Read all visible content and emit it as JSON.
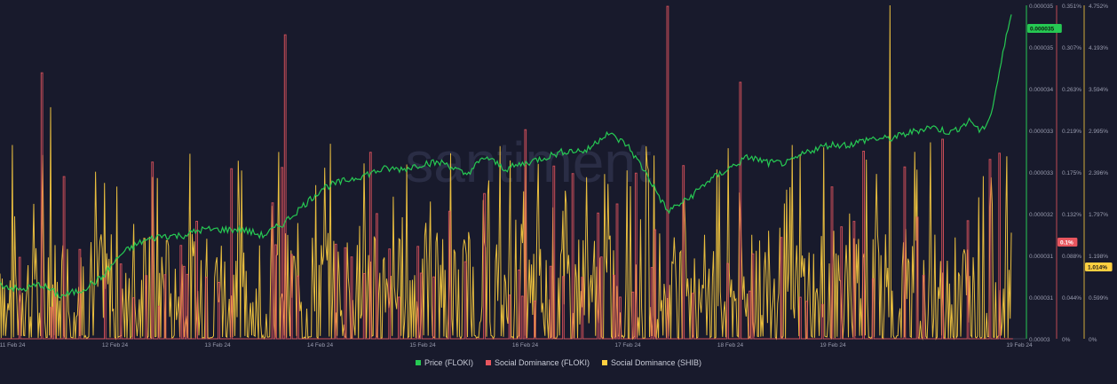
{
  "chart_data": {
    "type": "line",
    "watermark": "santiment",
    "x_ticks": [
      "11 Feb 24",
      "12 Feb 24",
      "13 Feb 24",
      "14 Feb 24",
      "15 Feb 24",
      "16 Feb 24",
      "17 Feb 24",
      "18 Feb 24",
      "19 Feb 24",
      "19 Feb 24"
    ],
    "axes": {
      "price": {
        "ticks": [
          "0.000035",
          "0.000035",
          "0.000034",
          "0.000033",
          "0.000033",
          "0.000032",
          "0.000031",
          "0.000031",
          "0.00003"
        ],
        "current_label": "0.000035",
        "color": "#26c953"
      },
      "floki_dominance": {
        "ticks": [
          "0.351%",
          "0.307%",
          "0.263%",
          "0.219%",
          "0.175%",
          "0.132%",
          "0.088%",
          "0.044%",
          "0%"
        ],
        "current_label": "0.1%",
        "color": "#e8565f"
      },
      "shib_dominance": {
        "ticks": [
          "4.752%",
          "4.193%",
          "3.594%",
          "2.995%",
          "2.396%",
          "1.797%",
          "1.198%",
          "0.599%",
          "0%"
        ],
        "current_label": "1.014%",
        "color": "#ffcf40"
      }
    },
    "series": [
      {
        "name": "Price (FLOKI)",
        "color": "#26c953",
        "y_axis": "price",
        "points": [
          [
            0,
            3.09e-05
          ],
          [
            0.02,
            3.08e-05
          ],
          [
            0.04,
            3.09e-05
          ],
          [
            0.06,
            3.07e-05
          ],
          [
            0.08,
            3.08e-05
          ],
          [
            0.1,
            3.1e-05
          ],
          [
            0.12,
            3.14e-05
          ],
          [
            0.14,
            3.16e-05
          ],
          [
            0.16,
            3.17e-05
          ],
          [
            0.18,
            3.17e-05
          ],
          [
            0.2,
            3.18e-05
          ],
          [
            0.22,
            3.18e-05
          ],
          [
            0.24,
            3.18e-05
          ],
          [
            0.26,
            3.17e-05
          ],
          [
            0.28,
            3.19e-05
          ],
          [
            0.3,
            3.22e-05
          ],
          [
            0.32,
            3.25e-05
          ],
          [
            0.34,
            3.26e-05
          ],
          [
            0.36,
            3.27e-05
          ],
          [
            0.38,
            3.28e-05
          ],
          [
            0.4,
            3.28e-05
          ],
          [
            0.42,
            3.29e-05
          ],
          [
            0.44,
            3.29e-05
          ],
          [
            0.46,
            3.27e-05
          ],
          [
            0.48,
            3.3e-05
          ],
          [
            0.5,
            3.28e-05
          ],
          [
            0.52,
            3.29e-05
          ],
          [
            0.54,
            3.3e-05
          ],
          [
            0.56,
            3.31e-05
          ],
          [
            0.58,
            3.31e-05
          ],
          [
            0.6,
            3.34e-05
          ],
          [
            0.62,
            3.32e-05
          ],
          [
            0.64,
            3.27e-05
          ],
          [
            0.66,
            3.21e-05
          ],
          [
            0.68,
            3.23e-05
          ],
          [
            0.7,
            3.26e-05
          ],
          [
            0.72,
            3.28e-05
          ],
          [
            0.74,
            3.3e-05
          ],
          [
            0.76,
            3.29e-05
          ],
          [
            0.78,
            3.29e-05
          ],
          [
            0.8,
            3.31e-05
          ],
          [
            0.82,
            3.32e-05
          ],
          [
            0.84,
            3.32e-05
          ],
          [
            0.86,
            3.33e-05
          ],
          [
            0.88,
            3.33e-05
          ],
          [
            0.9,
            3.34e-05
          ],
          [
            0.92,
            3.35e-05
          ],
          [
            0.94,
            3.34e-05
          ],
          [
            0.96,
            3.36e-05
          ],
          [
            0.97,
            3.34e-05
          ],
          [
            0.98,
            3.37e-05
          ],
          [
            1.0,
            3.54e-05
          ]
        ]
      },
      {
        "name": "Social Dominance (FLOKI)",
        "color": "#e8565f",
        "y_axis": "floki_dominance",
        "points": [
          [
            0.04,
            0.28
          ],
          [
            0.045,
            0.0
          ],
          [
            0.28,
            0.32
          ],
          [
            0.285,
            0.0
          ],
          [
            0.52,
            0.22
          ],
          [
            0.525,
            0.0
          ],
          [
            0.66,
            0.35
          ],
          [
            0.665,
            0.0
          ],
          [
            0.73,
            0.27
          ],
          [
            0.735,
            0.0
          ],
          [
            0.93,
            0.21
          ],
          [
            0.935,
            0.0
          ]
        ]
      },
      {
        "name": "Social Dominance (SHIB)",
        "color": "#ffcf40",
        "y_axis": "shib_dominance",
        "points": [
          [
            0.05,
            3.3
          ],
          [
            0.055,
            0.0
          ],
          [
            0.36,
            2.5
          ],
          [
            0.365,
            0.0
          ],
          [
            0.62,
            2.4
          ],
          [
            0.625,
            0.0
          ],
          [
            0.88,
            4.752
          ],
          [
            0.885,
            0.0
          ],
          [
            0.92,
            2.8
          ],
          [
            0.925,
            0.0
          ],
          [
            0.98,
            2.3
          ],
          [
            0.985,
            0.0
          ]
        ]
      }
    ],
    "legend": [
      {
        "label": "Price (FLOKI)",
        "color": "#26c953"
      },
      {
        "label": "Social Dominance (FLOKI)",
        "color": "#e8565f"
      },
      {
        "label": "Social Dominance (SHIB)",
        "color": "#ffcf40"
      }
    ]
  }
}
